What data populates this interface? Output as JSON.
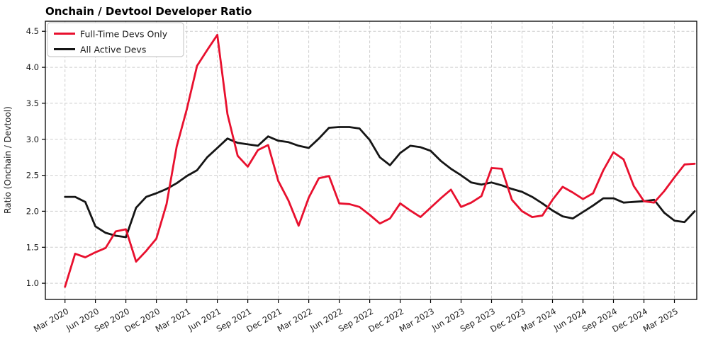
{
  "page": {
    "background": "#ffffff"
  },
  "chart_data": {
    "type": "line",
    "title": "Onchain / Devtool Developer Ratio",
    "ylabel": "Ratio (Onchain / Devtool)",
    "x_start_month": "Mar 2020",
    "x_end_month": "May 2025",
    "x_frequency": "monthly",
    "x_tick_step_months": 3,
    "x_tick_labels": [
      "Mar 2020",
      "Jun 2020",
      "Sep 2020",
      "Dec 2020",
      "Mar 2021",
      "Jun 2021",
      "Sep 2021",
      "Dec 2021",
      "Mar 2022",
      "Jun 2022",
      "Sep 2022",
      "Dec 2022",
      "Mar 2023",
      "Jun 2023",
      "Sep 2023",
      "Dec 2023",
      "Mar 2024",
      "Jun 2024",
      "Sep 2024",
      "Dec 2024",
      "Mar 2025"
    ],
    "y_ticks": [
      1.0,
      1.5,
      2.0,
      2.5,
      3.0,
      3.5,
      4.0,
      4.5
    ],
    "ylim": [
      0.775,
      4.64
    ],
    "grid": "dashed",
    "grid_color": "#cdcdcd",
    "legend_position": "upper-left",
    "series": [
      {
        "name": "Full-Time Devs Only",
        "color": "#e8102e",
        "values": [
          0.95,
          1.41,
          1.36,
          1.43,
          1.49,
          1.72,
          1.75,
          1.3,
          1.45,
          1.62,
          2.1,
          2.9,
          3.42,
          4.02,
          4.24,
          4.45,
          3.35,
          2.77,
          2.62,
          2.85,
          2.92,
          2.42,
          2.15,
          1.8,
          2.19,
          2.46,
          2.49,
          2.11,
          2.1,
          2.06,
          1.95,
          1.83,
          1.9,
          2.11,
          2.01,
          1.92,
          2.05,
          2.18,
          2.3,
          2.06,
          2.12,
          2.21,
          2.6,
          2.59,
          2.16,
          2.0,
          1.92,
          1.94,
          2.16,
          2.34,
          2.26,
          2.17,
          2.25,
          2.57,
          2.82,
          2.72,
          2.35,
          2.14,
          2.12,
          2.28,
          2.47,
          2.65,
          2.66
        ]
      },
      {
        "name": "All Active Devs",
        "color": "#151515",
        "values": [
          2.2,
          2.2,
          2.13,
          1.79,
          1.7,
          1.66,
          1.64,
          2.05,
          2.2,
          2.25,
          2.31,
          2.39,
          2.49,
          2.57,
          2.75,
          2.88,
          3.01,
          2.95,
          2.93,
          2.91,
          3.04,
          2.98,
          2.96,
          2.91,
          2.88,
          3.01,
          3.16,
          3.17,
          3.17,
          3.15,
          2.99,
          2.75,
          2.64,
          2.81,
          2.91,
          2.89,
          2.84,
          2.7,
          2.59,
          2.5,
          2.4,
          2.37,
          2.4,
          2.36,
          2.31,
          2.27,
          2.2,
          2.11,
          2.01,
          1.93,
          1.9,
          1.99,
          2.08,
          2.18,
          2.18,
          2.12,
          2.13,
          2.14,
          2.16,
          1.98,
          1.87,
          1.85,
          2.0
        ]
      }
    ]
  }
}
